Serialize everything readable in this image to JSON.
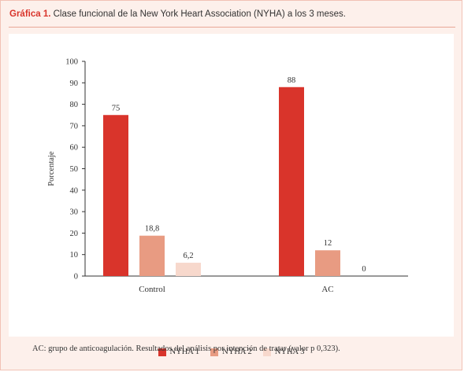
{
  "header": {
    "title_lead": "Gráfica 1.",
    "title_text": " Clase funcional de la New York Heart Association (NYHA) a los 3 meses."
  },
  "footnote": "AC: grupo de anticoagulación. Resultados del análisis por intención de tratar (valor p 0,323).",
  "chart_data": {
    "type": "bar",
    "title": "",
    "xlabel": "",
    "ylabel": "Porcentaje",
    "ylim": [
      0,
      100
    ],
    "yticks": [
      0,
      10,
      20,
      30,
      40,
      50,
      60,
      70,
      80,
      90,
      100
    ],
    "categories": [
      "Control",
      "AC"
    ],
    "series": [
      {
        "name": "NYHA 1",
        "color": "#d9342b",
        "values": [
          75,
          88
        ],
        "labels": [
          "75",
          "88"
        ]
      },
      {
        "name": "NYHA 2",
        "color": "#e89b82",
        "values": [
          18.8,
          12
        ],
        "labels": [
          "18,8",
          "12"
        ]
      },
      {
        "name": "NYHA 3",
        "color": "#f7d8cc",
        "values": [
          6.2,
          0
        ],
        "labels": [
          "6,2",
          "0"
        ]
      }
    ],
    "grid": false,
    "legend_position": "bottom"
  }
}
